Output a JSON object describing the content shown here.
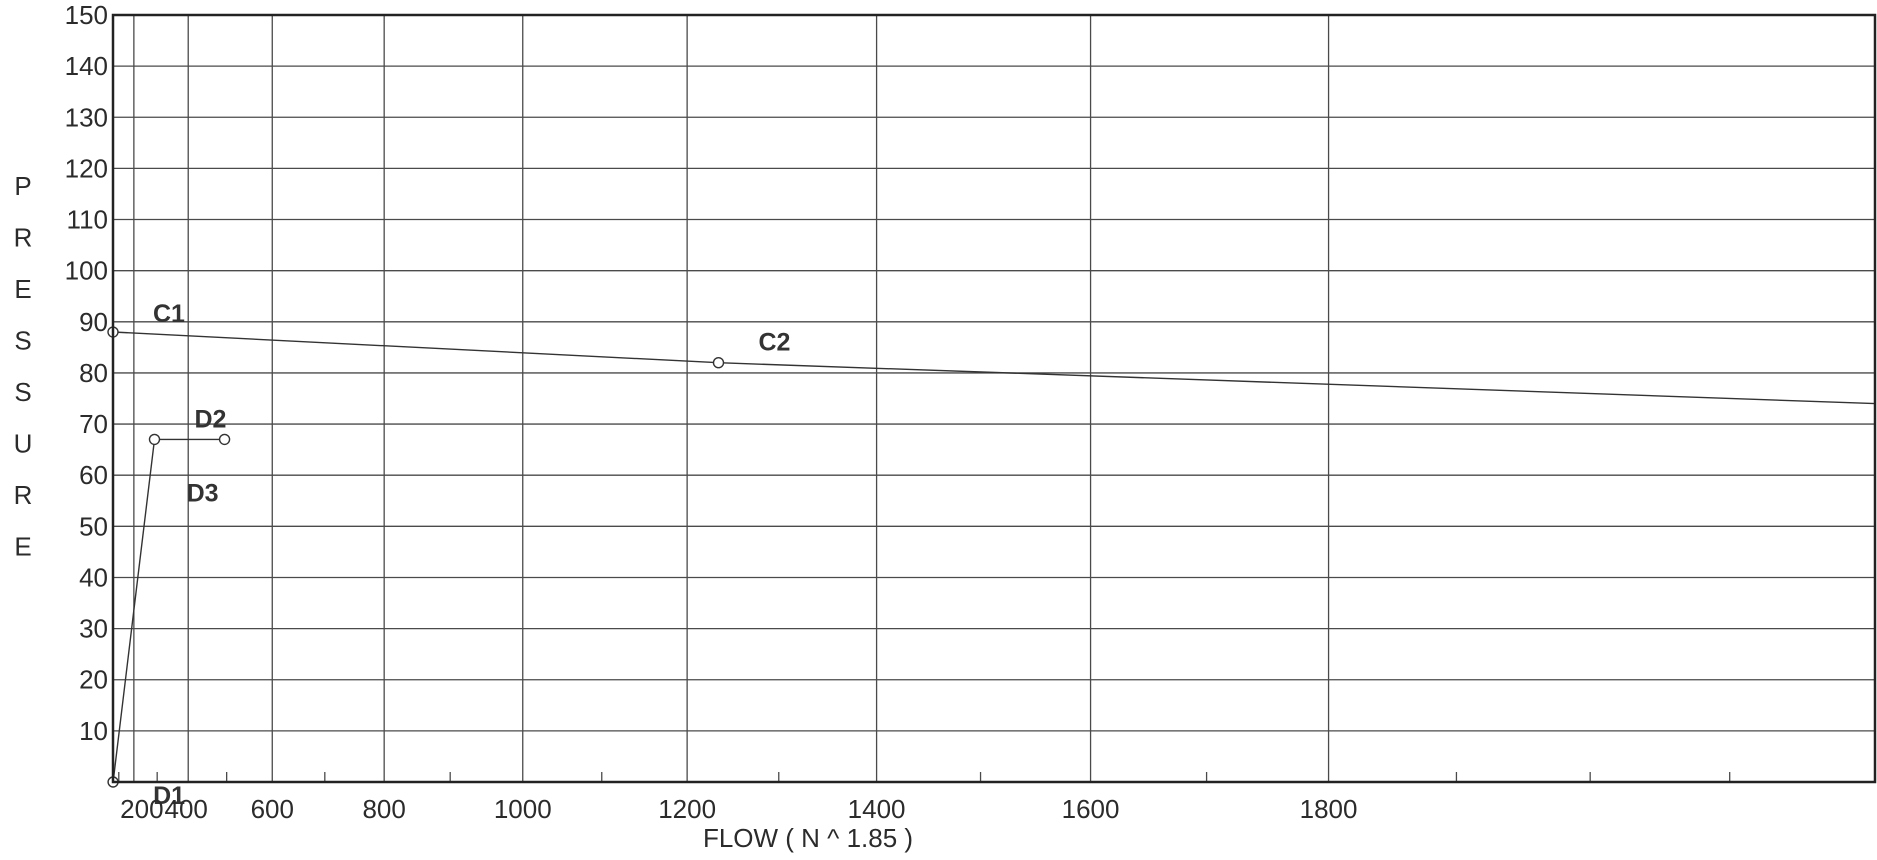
{
  "chart_data": {
    "type": "line",
    "title": "",
    "xlabel": "FLOW ( N ^ 1.85 )",
    "ylabel": "PRESSURE",
    "ylabel_letters": [
      "P",
      "R",
      "E",
      "S",
      "S",
      "U",
      "R",
      "E"
    ],
    "x_scale": "power-1.85",
    "xlim": [
      0,
      2200
    ],
    "ylim": [
      0,
      150
    ],
    "grid": true,
    "x_ticks": [
      {
        "value": 200,
        "label": "200"
      },
      {
        "value": 400,
        "label": "400"
      },
      {
        "value": 600,
        "label": "600"
      },
      {
        "value": 800,
        "label": "800"
      },
      {
        "value": 1000,
        "label": "1000"
      },
      {
        "value": 1200,
        "label": "1200"
      },
      {
        "value": 1400,
        "label": "1400"
      },
      {
        "value": 1600,
        "label": "1600"
      },
      {
        "value": 1800,
        "label": "1800"
      }
    ],
    "x_minor_ticks": [
      100,
      300,
      500,
      700,
      900,
      1100,
      1300,
      1500,
      1700,
      1900,
      2000,
      2100
    ],
    "y_ticks": [
      {
        "value": 10,
        "label": "10"
      },
      {
        "value": 20,
        "label": "20"
      },
      {
        "value": 30,
        "label": "30"
      },
      {
        "value": 40,
        "label": "40"
      },
      {
        "value": 50,
        "label": "50"
      },
      {
        "value": 60,
        "label": "60"
      },
      {
        "value": 70,
        "label": "70"
      },
      {
        "value": 80,
        "label": "80"
      },
      {
        "value": 90,
        "label": "90"
      },
      {
        "value": 100,
        "label": "100"
      },
      {
        "value": 110,
        "label": "110"
      },
      {
        "value": 120,
        "label": "120"
      },
      {
        "value": 130,
        "label": "130"
      },
      {
        "value": 140,
        "label": "140"
      },
      {
        "value": 150,
        "label": "150"
      }
    ],
    "series": [
      {
        "points": [
          {
            "x": 0,
            "y": 88,
            "label": "C1",
            "marker": true
          },
          {
            "x": 1235,
            "y": 82,
            "label": "C2",
            "marker": true
          },
          {
            "x": 2200,
            "y": 74,
            "label": "",
            "marker": false
          }
        ]
      },
      {
        "points": [
          {
            "x": 10,
            "y": 0,
            "label": "D1",
            "marker": true
          },
          {
            "x": 290,
            "y": 67,
            "label": "D2",
            "marker": true
          },
          {
            "x": 495,
            "y": 67,
            "label": "D3",
            "marker": true
          }
        ]
      }
    ]
  }
}
